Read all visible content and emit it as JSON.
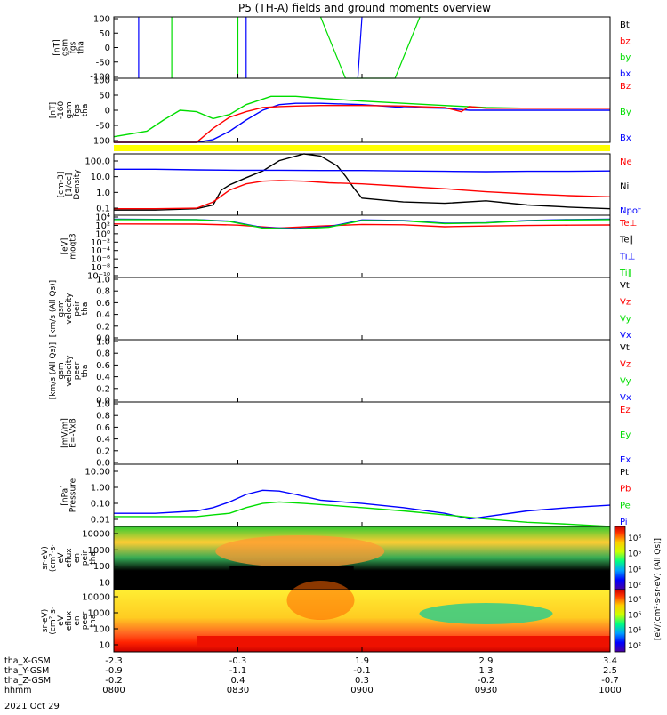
{
  "title": "P5 (TH-A) fields and ground moments overview",
  "date_label": "2021 Oct 29",
  "time": {
    "row_labels": [
      "tha_X-GSM",
      "tha_Y-GSM",
      "tha_Z-GSM",
      "hhmm"
    ],
    "columns": [
      {
        "t": 0,
        "vals": [
          "-2.3",
          "-0.9",
          "-0.2",
          "0800"
        ]
      },
      {
        "t": 30,
        "vals": [
          "-0.3",
          "-1.1",
          "0.4",
          "0830"
        ]
      },
      {
        "t": 60,
        "vals": [
          "1.9",
          "-0.1",
          "0.3",
          "0900"
        ]
      },
      {
        "t": 90,
        "vals": [
          "2.9",
          "1.3",
          "-0.2",
          "0930"
        ]
      },
      {
        "t": 120,
        "vals": [
          "3.4",
          "2.5",
          "-0.7",
          "1000"
        ]
      }
    ]
  },
  "colors": {
    "black": "#000000",
    "red": "#ff0000",
    "green": "#00dd00",
    "blue": "#0000ff",
    "yellow": "#ffff00"
  },
  "panels": [
    {
      "id": "fgs",
      "ylabel_lines": [
        "tha",
        "fgs",
        "gsm",
        "[nT]"
      ],
      "ticks": [
        "100",
        "50",
        "0",
        "-50",
        "-100"
      ],
      "legend": [
        {
          "text": "Bt",
          "color": "black"
        },
        {
          "text": "bz",
          "color": "red"
        },
        {
          "text": "by",
          "color": "green"
        },
        {
          "text": "bx",
          "color": "blue"
        }
      ]
    },
    {
      "id": "fgs_clip",
      "ylabel_lines": [
        "tha",
        "fgs",
        "gsm",
        "-160",
        "[nT]"
      ],
      "ticks": [
        "100",
        "50",
        "0",
        "-50",
        "-100"
      ],
      "legend": [
        {
          "text": "Bz",
          "color": "red"
        },
        {
          "text": "By",
          "color": "green"
        },
        {
          "text": "Bx",
          "color": "blue"
        }
      ]
    },
    {
      "id": "density",
      "ylabel_lines": [
        "Density",
        "[1/cc]",
        "[cm-3]"
      ],
      "ticks": [
        "100.0",
        "10.0",
        "1.0",
        "0.1"
      ],
      "legend": [
        {
          "text": "Ne",
          "color": "red"
        },
        {
          "text": "Ni",
          "color": "black"
        },
        {
          "text": "Npot",
          "color": "blue"
        }
      ]
    },
    {
      "id": "temp",
      "ylabel_lines": [
        "moqt3",
        "[eV]"
      ],
      "ticks": [
        "10⁴",
        "10²",
        "10⁰",
        "10⁻²",
        "10⁻⁴",
        "10⁻⁶",
        "10⁻⁸",
        "10⁻¹⁰"
      ],
      "legend": [
        {
          "text": "Te⊥",
          "color": "red"
        },
        {
          "text": "Te∥",
          "color": "black"
        },
        {
          "text": "Ti⊥",
          "color": "blue"
        },
        {
          "text": "Ti∥",
          "color": "green"
        }
      ]
    },
    {
      "id": "peir_vel",
      "ylabel_lines": [
        "tha",
        "peir",
        "velocity",
        "gsm",
        "[km/s (All Qs)]"
      ],
      "ticks": [
        "1.0",
        "0.8",
        "0.6",
        "0.4",
        "0.2",
        "0.0"
      ],
      "legend": [
        {
          "text": "Vt",
          "color": "black"
        },
        {
          "text": "Vz",
          "color": "red"
        },
        {
          "text": "Vy",
          "color": "green"
        },
        {
          "text": "Vx",
          "color": "blue"
        }
      ]
    },
    {
      "id": "peer_vel",
      "ylabel_lines": [
        "tha",
        "peer",
        "velocity",
        "gsm",
        "[km/s (All Qs)]"
      ],
      "ticks": [
        "1.0",
        "0.8",
        "0.6",
        "0.4",
        "0.2",
        "0.0"
      ],
      "legend": [
        {
          "text": "Vt",
          "color": "black"
        },
        {
          "text": "Vz",
          "color": "red"
        },
        {
          "text": "Vy",
          "color": "green"
        },
        {
          "text": "Vx",
          "color": "blue"
        }
      ]
    },
    {
      "id": "efield",
      "ylabel_lines": [
        "E=-VxB",
        "[mV/m]"
      ],
      "ticks": [
        "1.0",
        "0.8",
        "0.6",
        "0.4",
        "0.2",
        "0.0"
      ],
      "legend": [
        {
          "text": "Ez",
          "color": "red"
        },
        {
          "text": "Ey",
          "color": "green"
        },
        {
          "text": "Ex",
          "color": "blue"
        }
      ]
    },
    {
      "id": "pressure",
      "ylabel_lines": [
        "Pressure",
        "[nPa]"
      ],
      "ticks": [
        "10.00",
        "1.00",
        "0.10",
        "0.01"
      ],
      "legend": [
        {
          "text": "Pt",
          "color": "black"
        },
        {
          "text": "Pb",
          "color": "red"
        },
        {
          "text": "Pe",
          "color": "green"
        },
        {
          "text": "Pi",
          "color": "blue"
        }
      ]
    },
    {
      "id": "peir_spec",
      "ylabel_lines": [
        "tha",
        "peir",
        "en",
        "eflux",
        "eV",
        "(cm²·s·",
        "sr·eV)"
      ],
      "ticks": [
        "10000",
        "1000",
        "100",
        "10"
      ],
      "legend": []
    },
    {
      "id": "peer_spec",
      "ylabel_lines": [
        "tha",
        "peer",
        "en",
        "eflux",
        "eV",
        "(cm²·s·",
        "sr·eV)"
      ],
      "ticks": [
        "10000",
        "1000",
        "100",
        "10"
      ],
      "legend": []
    }
  ],
  "colorbar": {
    "label": "[eV/(cm²·s·sr·eV) (All Qs)]",
    "top_ticks": [
      "10⁸",
      "10⁶",
      "10⁴",
      "10²"
    ],
    "bottom_ticks": [
      "10⁸",
      "10⁶",
      "10⁴",
      "10²"
    ]
  },
  "chart_data": {
    "type": "line",
    "title": "P5 (TH-A) fields and ground moments overview",
    "x": {
      "label": "hhmm",
      "ticks": [
        "0800",
        "0830",
        "0900",
        "0930",
        "1000"
      ],
      "range_min": [
        0,
        120
      ]
    },
    "series": [
      {
        "name": "By",
        "panel": "fgs_clip",
        "x": [
          0,
          8,
          12,
          16,
          20,
          24,
          28,
          32,
          38,
          44,
          50,
          60,
          70,
          80,
          90,
          100,
          110,
          120
        ],
        "y": [
          -100,
          -80,
          -40,
          -5,
          -10,
          -35,
          -20,
          15,
          45,
          45,
          38,
          28,
          20,
          12,
          5,
          2,
          2,
          2
        ]
      },
      {
        "name": "Bx",
        "panel": "fgs_clip",
        "x": [
          0,
          10,
          20,
          24,
          28,
          32,
          36,
          40,
          44,
          50,
          60,
          70,
          80,
          86,
          90,
          100,
          110,
          120
        ],
        "y": [
          -120,
          -120,
          -120,
          -110,
          -80,
          -40,
          -5,
          15,
          20,
          20,
          15,
          5,
          2,
          -5,
          -5,
          -5,
          -5,
          -5
        ]
      },
      {
        "name": "Bz",
        "panel": "fgs_clip",
        "x": [
          0,
          10,
          20,
          24,
          28,
          32,
          36,
          40,
          44,
          50,
          60,
          70,
          80,
          84,
          86,
          90,
          100,
          120
        ],
        "y": [
          -120,
          -120,
          -120,
          -70,
          -30,
          -10,
          5,
          8,
          10,
          12,
          12,
          10,
          5,
          -10,
          8,
          2,
          2,
          2
        ]
      },
      {
        "name": "Ni",
        "panel": "density",
        "x": [
          0,
          10,
          20,
          24,
          26,
          28,
          32,
          36,
          40,
          46,
          50,
          54,
          56,
          58,
          60,
          70,
          80,
          90,
          100,
          110,
          120
        ],
        "y": [
          0.1,
          0.1,
          0.12,
          0.2,
          1.5,
          3,
          8,
          20,
          80,
          220,
          150,
          40,
          10,
          2,
          0.5,
          0.3,
          0.25,
          0.35,
          0.2,
          0.15,
          0.12
        ]
      },
      {
        "name": "Ne",
        "panel": "density",
        "x": [
          0,
          10,
          20,
          24,
          28,
          32,
          36,
          40,
          46,
          52,
          60,
          70,
          80,
          90,
          100,
          110,
          120
        ],
        "y": [
          0.12,
          0.12,
          0.13,
          0.3,
          1.5,
          3.5,
          5,
          5.5,
          5,
          4,
          3.5,
          2.5,
          1.8,
          1.2,
          0.9,
          0.7,
          0.6
        ]
      },
      {
        "name": "Npot",
        "panel": "density",
        "x": [
          0,
          10,
          20,
          30,
          40,
          50,
          60,
          70,
          80,
          90,
          100,
          110,
          120
        ],
        "y": [
          25,
          25,
          23,
          22,
          22,
          21,
          21,
          20,
          19,
          18,
          19,
          19,
          20
        ]
      },
      {
        "name": "Te⊥",
        "panel": "temp",
        "x": [
          0,
          20,
          30,
          40,
          50,
          60,
          70,
          80,
          90,
          100,
          110,
          120
        ],
        "y": [
          200,
          180,
          100,
          20,
          60,
          150,
          120,
          40,
          60,
          80,
          100,
          110
        ]
      },
      {
        "name": "Ti⊥",
        "panel": "temp",
        "x": [
          0,
          20,
          28,
          36,
          44,
          52,
          60,
          70,
          80,
          90,
          100,
          110,
          120
        ],
        "y": [
          3000,
          2500,
          1000,
          25,
          15,
          40,
          2000,
          1500,
          300,
          400,
          1500,
          2500,
          3000
        ]
      },
      {
        "name": "Ti∥",
        "panel": "temp",
        "x": [
          0,
          20,
          28,
          36,
          44,
          52,
          60,
          70,
          80,
          90,
          100,
          110,
          120
        ],
        "y": [
          2500,
          2200,
          800,
          20,
          12,
          30,
          1500,
          1200,
          250,
          350,
          1200,
          2000,
          2500
        ]
      },
      {
        "name": "Pi",
        "panel": "pressure",
        "x": [
          0,
          10,
          20,
          24,
          28,
          32,
          36,
          40,
          44,
          50,
          60,
          70,
          80,
          86,
          90,
          100,
          110,
          120
        ],
        "y": [
          0.03,
          0.03,
          0.04,
          0.06,
          0.12,
          0.3,
          0.5,
          0.45,
          0.3,
          0.15,
          0.1,
          0.06,
          0.03,
          0.015,
          0.02,
          0.04,
          0.06,
          0.08
        ]
      },
      {
        "name": "Pe",
        "panel": "pressure",
        "x": [
          0,
          10,
          20,
          24,
          28,
          32,
          36,
          40,
          46,
          52,
          60,
          70,
          80,
          90,
          100,
          110,
          120
        ],
        "y": [
          0.02,
          0.02,
          0.02,
          0.025,
          0.03,
          0.06,
          0.1,
          0.12,
          0.1,
          0.08,
          0.06,
          0.04,
          0.025,
          0.015,
          0.01,
          0.008,
          0.006
        ]
      }
    ]
  }
}
